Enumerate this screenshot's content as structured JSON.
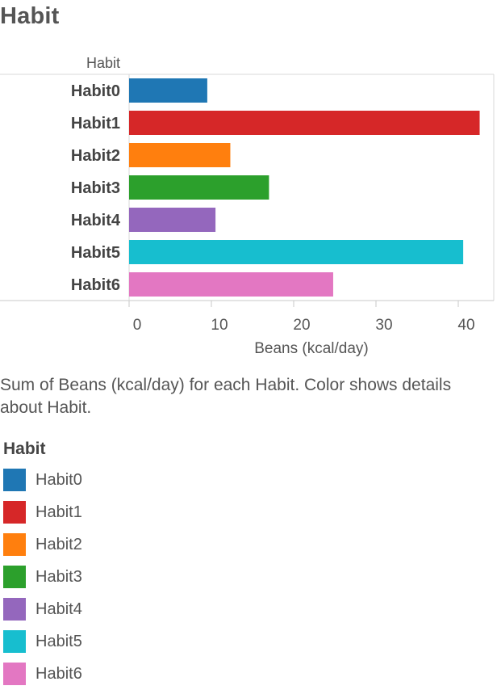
{
  "page": {
    "title": "Habit",
    "caption": "Sum of Beans (kcal/day) for each Habit.  Color shows details about Habit."
  },
  "chart_data": {
    "type": "bar",
    "orientation": "horizontal",
    "title": "",
    "ylabel": "Habit",
    "xlabel": "Beans (kcal/day)",
    "categories": [
      "Habit0",
      "Habit1",
      "Habit2",
      "Habit3",
      "Habit4",
      "Habit5",
      "Habit6"
    ],
    "values": [
      9.5,
      42.6,
      12.3,
      17.0,
      10.5,
      40.6,
      24.8
    ],
    "colors": [
      "#1f77b4",
      "#d62728",
      "#ff7f0e",
      "#2ca02c",
      "#9467bd",
      "#17becf",
      "#e377c2"
    ],
    "xlim": [
      0,
      44
    ],
    "xticks": [
      0,
      10,
      20,
      30,
      40
    ],
    "grid": false,
    "legend_position": "bottom"
  },
  "legend": {
    "title": "Habit",
    "items": [
      {
        "label": "Habit0",
        "color": "#1f77b4"
      },
      {
        "label": "Habit1",
        "color": "#d62728"
      },
      {
        "label": "Habit2",
        "color": "#ff7f0e"
      },
      {
        "label": "Habit3",
        "color": "#2ca02c"
      },
      {
        "label": "Habit4",
        "color": "#9467bd"
      },
      {
        "label": "Habit5",
        "color": "#17becf"
      },
      {
        "label": "Habit6",
        "color": "#e377c2"
      }
    ]
  }
}
